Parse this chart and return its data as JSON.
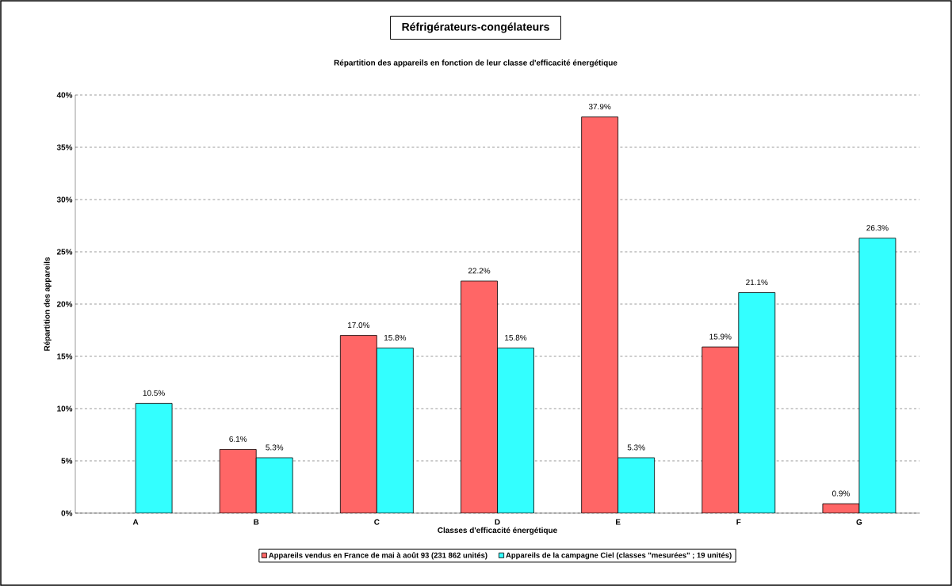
{
  "chart_data": {
    "type": "bar",
    "title": "Réfrigérateurs-congélateurs",
    "subtitle": "Répartition des appareils en fonction de leur classe d'efficacité énergétique",
    "xlabel": "Classes d'efficacité énergétique",
    "ylabel": "Répartition des appareils",
    "categories": [
      "A",
      "B",
      "C",
      "D",
      "E",
      "F",
      "G"
    ],
    "series": [
      {
        "name": "Appareils vendus en France de mai à août 93 (231 862 unités)",
        "color": "#ff6666",
        "values": [
          null,
          6.1,
          17.0,
          22.2,
          37.9,
          15.9,
          0.9
        ],
        "value_labels": [
          null,
          "6.1%",
          "17.0%",
          "22.2%",
          "37.9%",
          "15.9%",
          "0.9%"
        ]
      },
      {
        "name": "Appareils de la campagne Ciel (classes \"mesurées\" ; 19 unités)",
        "color": "#33ffff",
        "values": [
          10.5,
          5.3,
          15.8,
          15.8,
          5.3,
          21.1,
          26.3
        ],
        "value_labels": [
          "10.5%",
          "5.3%",
          "15.8%",
          "15.8%",
          "5.3%",
          "21.1%",
          "26.3%"
        ]
      }
    ],
    "ylim": [
      0,
      40
    ],
    "yticks": [
      {
        "value": 0,
        "label": "0%"
      },
      {
        "value": 5,
        "label": "5%"
      },
      {
        "value": 10,
        "label": "10%"
      },
      {
        "value": 15,
        "label": "15%"
      },
      {
        "value": 20,
        "label": "20%"
      },
      {
        "value": 25,
        "label": "25%"
      },
      {
        "value": 30,
        "label": "30%"
      },
      {
        "value": 35,
        "label": "35%"
      },
      {
        "value": 40,
        "label": "40%"
      }
    ],
    "grid": "y",
    "line_style": "dashed",
    "legend": "bottom"
  }
}
